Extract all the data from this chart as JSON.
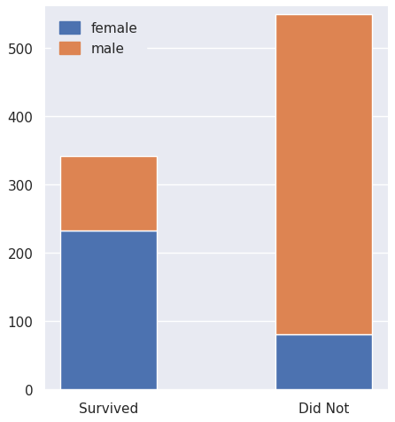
{
  "categories": [
    "Survived",
    "Did Not"
  ],
  "female_values": [
    233,
    81
  ],
  "male_values": [
    109,
    468
  ],
  "female_color": "#4c72b0",
  "male_color": "#dd8452",
  "legend_labels": [
    "female",
    "male"
  ],
  "ylim": [
    0,
    560
  ],
  "yticks": [
    0,
    100,
    200,
    300,
    400,
    500
  ],
  "plot_bg_color": "#e8eaf2",
  "fig_bg_color": "#ffffff",
  "grid_color": "#ffffff",
  "bar_width": 0.45,
  "tick_fontsize": 11,
  "legend_fontsize": 11
}
